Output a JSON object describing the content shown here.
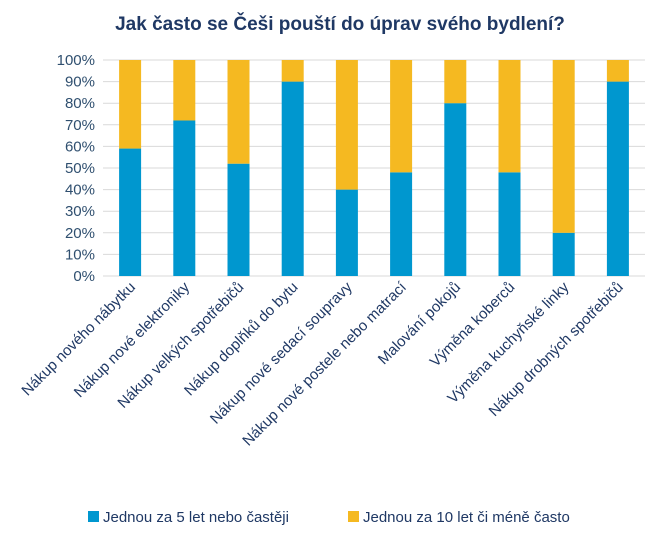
{
  "chart_data": {
    "type": "bar",
    "stacked": true,
    "title": "Jak často se Češi pouští do úprav svého bydlení?",
    "categories": [
      "Nákup nového nábytku",
      "Nákup nové elektroniky",
      "Nákup velkých spotřebičů",
      "Nákup doplňků do bytu",
      "Nákup nové sedací soupravy",
      "Nákup nové postele nebo matrací",
      "Malování pokojů",
      "Výměna koberců",
      "Výměna kuchyňské linky",
      "Nákup drobných spotřebičů"
    ],
    "series": [
      {
        "name": "Jednou za 5 let nebo častěji",
        "color": "#0097cf",
        "values": [
          59,
          72,
          52,
          90,
          40,
          48,
          80,
          48,
          20,
          90
        ]
      },
      {
        "name": "Jednou za 10 let či méně často",
        "color": "#f5b921",
        "values": [
          41,
          28,
          48,
          10,
          60,
          52,
          20,
          52,
          80,
          10
        ]
      }
    ],
    "ylim": [
      0,
      100
    ],
    "yticks": [
      "0%",
      "10%",
      "20%",
      "30%",
      "40%",
      "50%",
      "60%",
      "70%",
      "80%",
      "90%",
      "100%"
    ],
    "grid": true,
    "legend_position": "bottom"
  }
}
